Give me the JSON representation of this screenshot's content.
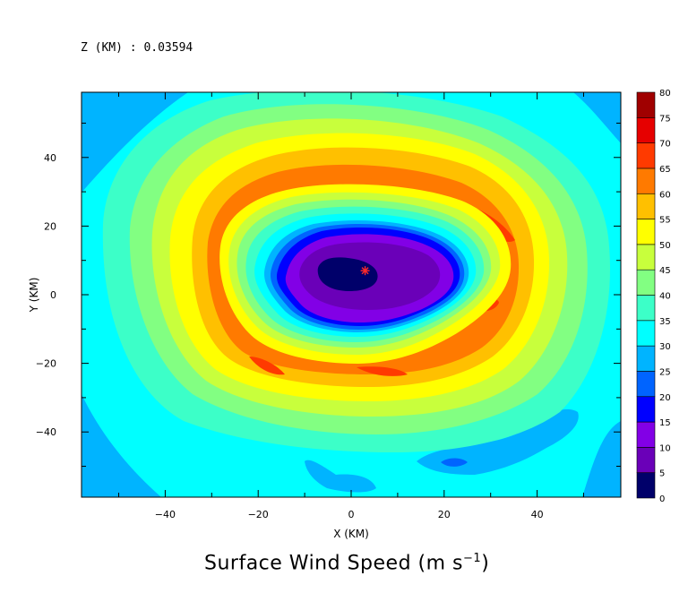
{
  "header": {
    "label": "Z (KM) : 0.03594"
  },
  "chart_data": {
    "type": "heatmap",
    "title": "Surface Wind Speed (m s⁻¹)",
    "title_main": "Surface Wind Speed (m s",
    "title_exp": "−1",
    "title_close": ")",
    "xlabel": "X (KM)",
    "ylabel": "Y (KM)",
    "xlim": [
      -58,
      58
    ],
    "ylim": [
      -59,
      59
    ],
    "xticks": [
      -40,
      -20,
      0,
      20,
      40
    ],
    "yticks": [
      -40,
      -20,
      0,
      20,
      40
    ],
    "center_marker": {
      "x": 3,
      "y": 7
    },
    "colorbar": {
      "levels": [
        0,
        5,
        10,
        15,
        20,
        25,
        30,
        35,
        40,
        45,
        50,
        55,
        60,
        65,
        70,
        75,
        80
      ],
      "level_labels": [
        "0",
        "5",
        "10",
        "15",
        "20",
        "25",
        "30",
        "35",
        "40",
        "45",
        "50",
        "55",
        "60",
        "65",
        "70",
        "75",
        "80"
      ],
      "colors": [
        "#00006a",
        "#6a00b8",
        "#8200e6",
        "#0000ff",
        "#0064ff",
        "#00b4ff",
        "#00ffff",
        "#3cffc8",
        "#82ff82",
        "#c8ff3c",
        "#ffff00",
        "#ffc000",
        "#ff7a00",
        "#ff3a00",
        "#e60000",
        "#a00000"
      ]
    },
    "regions": [
      {
        "name": "background-30-35",
        "level_index": 6
      },
      {
        "name": "ring-35-40",
        "level_index": 7
      },
      {
        "name": "ring-40-45",
        "level_index": 8
      },
      {
        "name": "ring-45-50",
        "level_index": 9
      },
      {
        "name": "ring-50-55",
        "level_index": 10
      },
      {
        "name": "ring-55-60",
        "level_index": 11
      },
      {
        "name": "ring-60-65",
        "level_index": 12
      },
      {
        "name": "eyewall-inner-20-25",
        "level_index": 4
      },
      {
        "name": "eyewall-inner-15-20",
        "level_index": 3
      },
      {
        "name": "eye-10-15",
        "level_index": 2
      },
      {
        "name": "eye-5-10",
        "level_index": 1
      },
      {
        "name": "eye-0-5",
        "level_index": 0
      }
    ]
  }
}
